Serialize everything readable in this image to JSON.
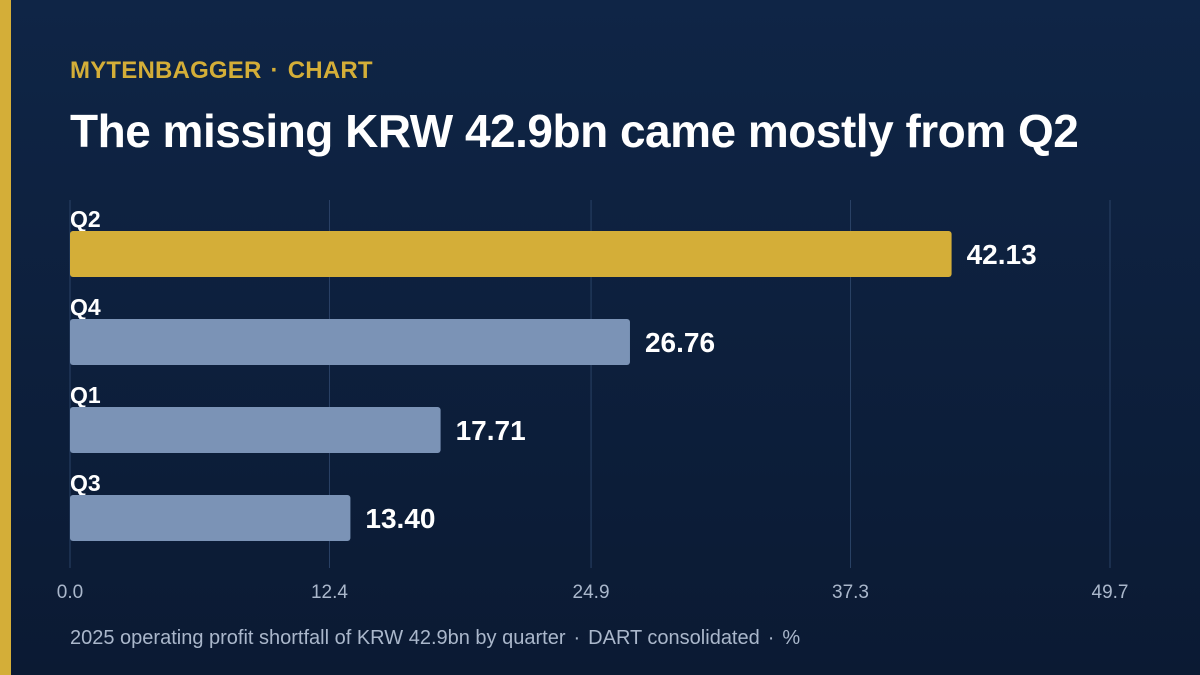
{
  "brand": {
    "name": "MYTENBAGGER",
    "section": "CHART",
    "separator": "·"
  },
  "title": "The missing KRW 42.9bn came mostly from Q2",
  "footer": {
    "parts": [
      "2025 operating profit shortfall of KRW 42.9bn by quarter",
      "DART consolidated",
      "%"
    ]
  },
  "colors": {
    "background_top": "#0f2546",
    "background_bottom": "#0b1a33",
    "accent": "#d4ae38",
    "bar_default": "#7b93b6",
    "gridline": "#2a4266",
    "tick_label": "#aab7cb",
    "value_label": "#ffffff"
  },
  "chart_data": {
    "type": "bar",
    "orientation": "horizontal",
    "categories": [
      "Q2",
      "Q4",
      "Q1",
      "Q3"
    ],
    "values": [
      42.13,
      26.76,
      17.71,
      13.4
    ],
    "value_labels": [
      "42.13",
      "26.76",
      "17.71",
      "13.40"
    ],
    "highlight": "Q2",
    "xlim": [
      0,
      49.7
    ],
    "x_ticks": [
      "0.0",
      "12.4",
      "24.9",
      "37.3",
      "49.7"
    ],
    "grid": "vertical"
  }
}
